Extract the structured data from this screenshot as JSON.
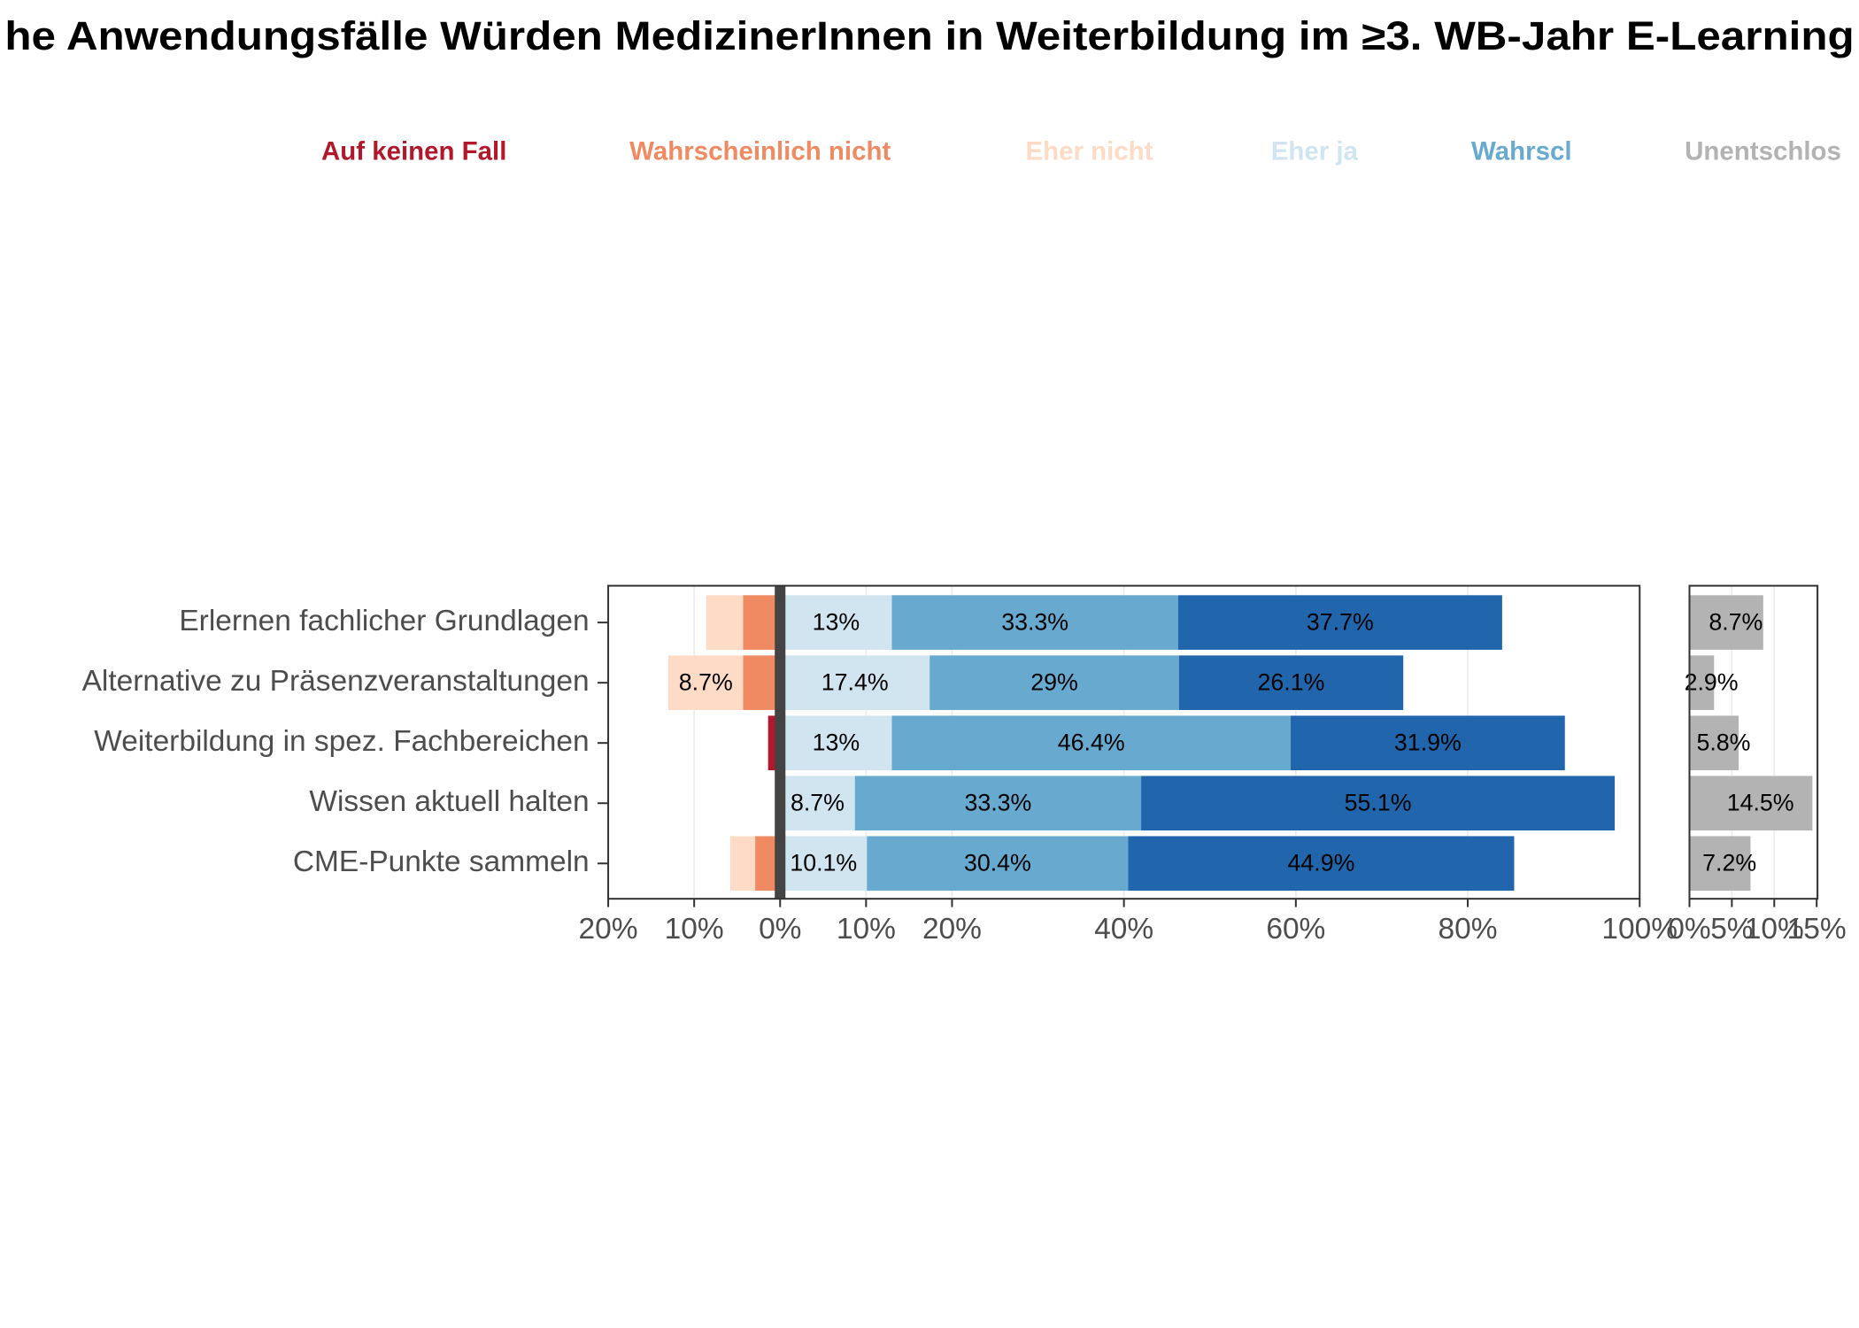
{
  "chart_data": {
    "type": "bar",
    "orientation": "horizontal",
    "stacking": "diverging",
    "title": "he Anwendungsfälle Würden MedizinerInnen in Weiterbildung im ≥3. WB-Jahr E-Learning",
    "categories": [
      "Erlernen fachlicher Grundlagen",
      "Alternative zu Präsenzveranstaltungen",
      "Weiterbildung in spez. Fachbereichen",
      "Wissen aktuell halten",
      "CME-Punkte sammeln"
    ],
    "series": [
      {
        "name": "Auf keinen Fall",
        "color": "#b2182b",
        "side": "left",
        "values": [
          0,
          0,
          1.4,
          0,
          0
        ],
        "value_labels": [
          null,
          null,
          null,
          null,
          null
        ]
      },
      {
        "name": "Wahrscheinlich nicht",
        "color": "#ef8a62",
        "side": "left",
        "values": [
          4.3,
          4.3,
          0,
          0,
          2.9
        ],
        "value_labels": [
          null,
          null,
          null,
          null,
          null
        ]
      },
      {
        "name": "Eher nicht",
        "color": "#fddbc7",
        "side": "left",
        "values": [
          4.3,
          8.7,
          0,
          0,
          2.9
        ],
        "value_labels": [
          null,
          "8.7%",
          null,
          null,
          null
        ]
      },
      {
        "name": "Eher ja",
        "color": "#d1e5f0",
        "side": "right",
        "values": [
          13,
          17.4,
          13,
          8.7,
          10.1
        ],
        "value_labels": [
          "13%",
          "17.4%",
          "13%",
          "8.7%",
          "10.1%"
        ]
      },
      {
        "name": "Wahrscl",
        "color": "#67a9cf",
        "side": "right",
        "values": [
          33.3,
          29,
          46.4,
          33.3,
          30.4
        ],
        "value_labels": [
          "33.3%",
          "29%",
          "46.4%",
          "33.3%",
          "30.4%"
        ]
      },
      {
        "color": "#2166ac",
        "side": "right",
        "values": [
          37.7,
          26.1,
          31.9,
          55.1,
          44.9
        ],
        "value_labels": [
          "37.7%",
          "26.1%",
          "31.9%",
          "55.1%",
          "44.9%"
        ]
      },
      {
        "name": "Unentschlos",
        "color": "#b3b3b3",
        "side": "panel2",
        "values": [
          8.7,
          2.9,
          5.8,
          14.5,
          7.2
        ],
        "value_labels": [
          "8.7%",
          "2.9%",
          "5.8%",
          "14.5%",
          "7.2%"
        ]
      }
    ],
    "xlim": [
      -20,
      100
    ],
    "xticks": [
      {
        "value": -20,
        "label": "20%"
      },
      {
        "value": -10,
        "label": "10%"
      },
      {
        "value": 0,
        "label": "0%"
      },
      {
        "value": 10,
        "label": "10%"
      },
      {
        "value": 20,
        "label": "20%"
      },
      {
        "value": 40,
        "label": "40%"
      },
      {
        "value": 60,
        "label": "60%"
      },
      {
        "value": 80,
        "label": "80%"
      },
      {
        "value": 100,
        "label": "100%"
      }
    ],
    "x2lim": [
      0,
      15.1
    ],
    "x2ticks": [
      {
        "value": 0,
        "label": "0%"
      },
      {
        "value": 5,
        "label": "5%"
      },
      {
        "value": 10,
        "label": "10%"
      },
      {
        "value": 15,
        "label": "15%"
      }
    ],
    "grid": true,
    "legend": "top"
  }
}
